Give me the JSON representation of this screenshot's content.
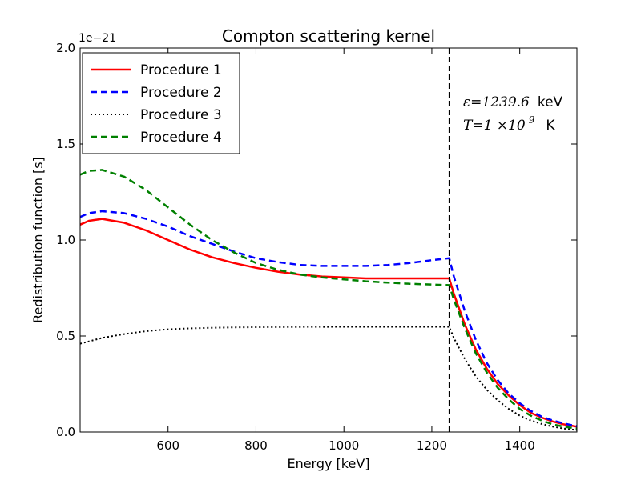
{
  "chart_data": {
    "type": "line",
    "title": "Compton scattering kernel",
    "xlabel": "Energy [keV]",
    "ylabel": "Redistribution function [s]",
    "y_offset_label": "1e−21",
    "xlim": [
      400,
      1530
    ],
    "ylim": [
      0.0,
      2.0
    ],
    "xticks": [
      600,
      800,
      1000,
      1200,
      1400
    ],
    "xtick_labels": [
      "600",
      "800",
      "1000",
      "1200",
      "1400"
    ],
    "yticks": [
      0.0,
      0.5,
      1.0,
      1.5,
      2.0
    ],
    "ytick_labels": [
      "0.0",
      "0.5",
      "1.0",
      "1.5",
      "2.0"
    ],
    "grid": false,
    "legend_position": "top-left",
    "vline": {
      "x": 1239.6,
      "style": "dashed",
      "color": "#000000"
    },
    "annotations": {
      "line1_math": "ε=1239.6",
      "line1_unit": "keV",
      "line2_math": "T=1 ×10",
      "line2_exp": "9",
      "line2_unit": "K"
    },
    "series": [
      {
        "name": "Procedure 1",
        "color": "#ff0000",
        "style": "solid",
        "x": [
          400,
          420,
          450,
          500,
          550,
          600,
          650,
          700,
          750,
          800,
          850,
          900,
          950,
          1000,
          1050,
          1100,
          1150,
          1200,
          1239.6,
          1250,
          1275,
          1300,
          1325,
          1350,
          1375,
          1400,
          1425,
          1450,
          1475,
          1500,
          1530
        ],
        "y": [
          1.08,
          1.1,
          1.11,
          1.09,
          1.05,
          1.0,
          0.95,
          0.91,
          0.88,
          0.855,
          0.835,
          0.82,
          0.81,
          0.805,
          0.8,
          0.8,
          0.8,
          0.8,
          0.8,
          0.72,
          0.56,
          0.43,
          0.33,
          0.25,
          0.19,
          0.14,
          0.1,
          0.075,
          0.055,
          0.04,
          0.028
        ]
      },
      {
        "name": "Procedure 2",
        "color": "#0000ff",
        "style": "dashed",
        "x": [
          400,
          420,
          450,
          500,
          550,
          600,
          650,
          700,
          750,
          800,
          850,
          900,
          950,
          1000,
          1050,
          1100,
          1150,
          1200,
          1239.6,
          1250,
          1275,
          1300,
          1325,
          1350,
          1375,
          1400,
          1425,
          1450,
          1475,
          1500,
          1530
        ],
        "y": [
          1.12,
          1.14,
          1.15,
          1.14,
          1.11,
          1.07,
          1.02,
          0.98,
          0.94,
          0.905,
          0.885,
          0.87,
          0.865,
          0.865,
          0.865,
          0.87,
          0.88,
          0.895,
          0.905,
          0.81,
          0.63,
          0.48,
          0.36,
          0.27,
          0.2,
          0.15,
          0.11,
          0.08,
          0.06,
          0.045,
          0.03
        ]
      },
      {
        "name": "Procedure 3",
        "color": "#000000",
        "style": "dotted",
        "x": [
          400,
          450,
          500,
          550,
          600,
          650,
          700,
          750,
          800,
          900,
          1000,
          1100,
          1200,
          1239.6,
          1250,
          1275,
          1300,
          1325,
          1350,
          1375,
          1400,
          1425,
          1450,
          1475,
          1500,
          1530
        ],
        "y": [
          0.46,
          0.49,
          0.51,
          0.525,
          0.535,
          0.54,
          0.543,
          0.545,
          0.546,
          0.547,
          0.548,
          0.548,
          0.548,
          0.548,
          0.49,
          0.38,
          0.29,
          0.22,
          0.165,
          0.12,
          0.085,
          0.06,
          0.042,
          0.028,
          0.018,
          0.01
        ]
      },
      {
        "name": "Procedure 4",
        "color": "#008000",
        "style": "dashed",
        "x": [
          400,
          420,
          450,
          500,
          550,
          600,
          650,
          700,
          750,
          800,
          850,
          900,
          950,
          1000,
          1050,
          1100,
          1150,
          1200,
          1239.6,
          1250,
          1275,
          1300,
          1325,
          1350,
          1375,
          1400,
          1425,
          1450,
          1475,
          1500,
          1530
        ],
        "y": [
          1.34,
          1.36,
          1.365,
          1.33,
          1.26,
          1.17,
          1.08,
          1.0,
          0.935,
          0.88,
          0.845,
          0.82,
          0.805,
          0.795,
          0.785,
          0.778,
          0.772,
          0.768,
          0.765,
          0.69,
          0.54,
          0.41,
          0.31,
          0.23,
          0.17,
          0.12,
          0.085,
          0.06,
          0.04,
          0.028,
          0.018
        ]
      }
    ]
  }
}
